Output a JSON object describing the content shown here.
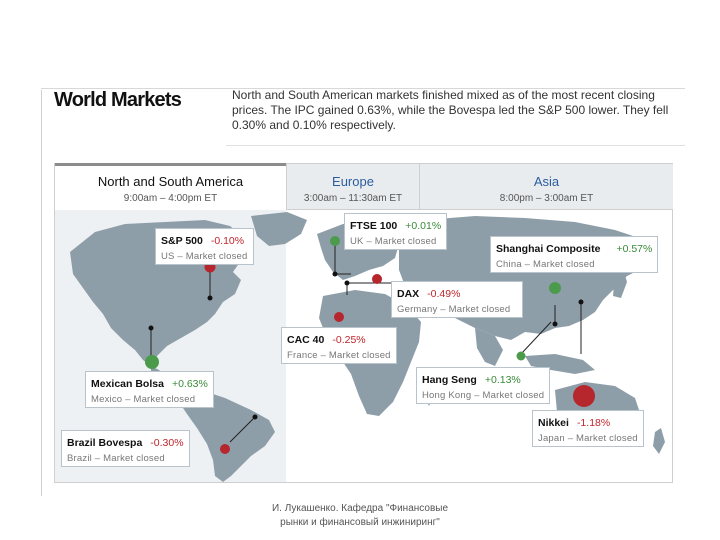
{
  "header": {
    "title": "World Markets",
    "description": "North and South American markets finished mixed as of the most recent closing prices. The IPC gained 0.63%, while the Bovespa led the S&P 500 lower. They fell 0.30% and 0.10% respectively."
  },
  "tabs": [
    {
      "name": "North and South America",
      "hours": "9:00am – 4:00pm ET",
      "active": true
    },
    {
      "name": "Europe",
      "hours": "3:00am – 11:30am ET",
      "active": false
    },
    {
      "name": "Asia",
      "hours": "8:00pm – 3:00am ET",
      "active": false
    }
  ],
  "markets": {
    "sp500": {
      "name": "S&P 500",
      "change": "-0.10%",
      "status": "US – Market closed",
      "direction": "down"
    },
    "ftse": {
      "name": "FTSE 100",
      "change": "+0.01%",
      "status": "UK – Market closed",
      "direction": "up"
    },
    "shanghai": {
      "name": "Shanghai Composite",
      "change": "+0.57%",
      "status": "China – Market closed",
      "direction": "up"
    },
    "dax": {
      "name": "DAX",
      "change": "-0.49%",
      "status": "Germany – Market closed",
      "direction": "down"
    },
    "cac": {
      "name": "CAC 40",
      "change": "-0.25%",
      "status": "France – Market closed",
      "direction": "down"
    },
    "bolsa": {
      "name": "Mexican Bolsa",
      "change": "+0.63%",
      "status": "Mexico – Market closed",
      "direction": "up"
    },
    "hangseng": {
      "name": "Hang Seng",
      "change": "+0.13%",
      "status": "Hong Kong – Market closed",
      "direction": "up"
    },
    "nikkei": {
      "name": "Nikkei",
      "change": "-1.18%",
      "status": "Japan – Market closed",
      "direction": "down"
    },
    "bovespa": {
      "name": "Brazil Bovespa",
      "change": "-0.30%",
      "status": "Brazil – Market closed",
      "direction": "down"
    }
  },
  "colors": {
    "up": "#4c9a4c",
    "down": "#b5262d",
    "land": "#8a9aa5",
    "land_highlight": "#a9b6bf",
    "tab_active_border": "#8c8c8c",
    "link": "#2b5d9e"
  },
  "footer": {
    "line1": "И. Лукашенко. Кафедра \"Финансовые",
    "line2": "рынки и финансовый инжиниринг\""
  }
}
